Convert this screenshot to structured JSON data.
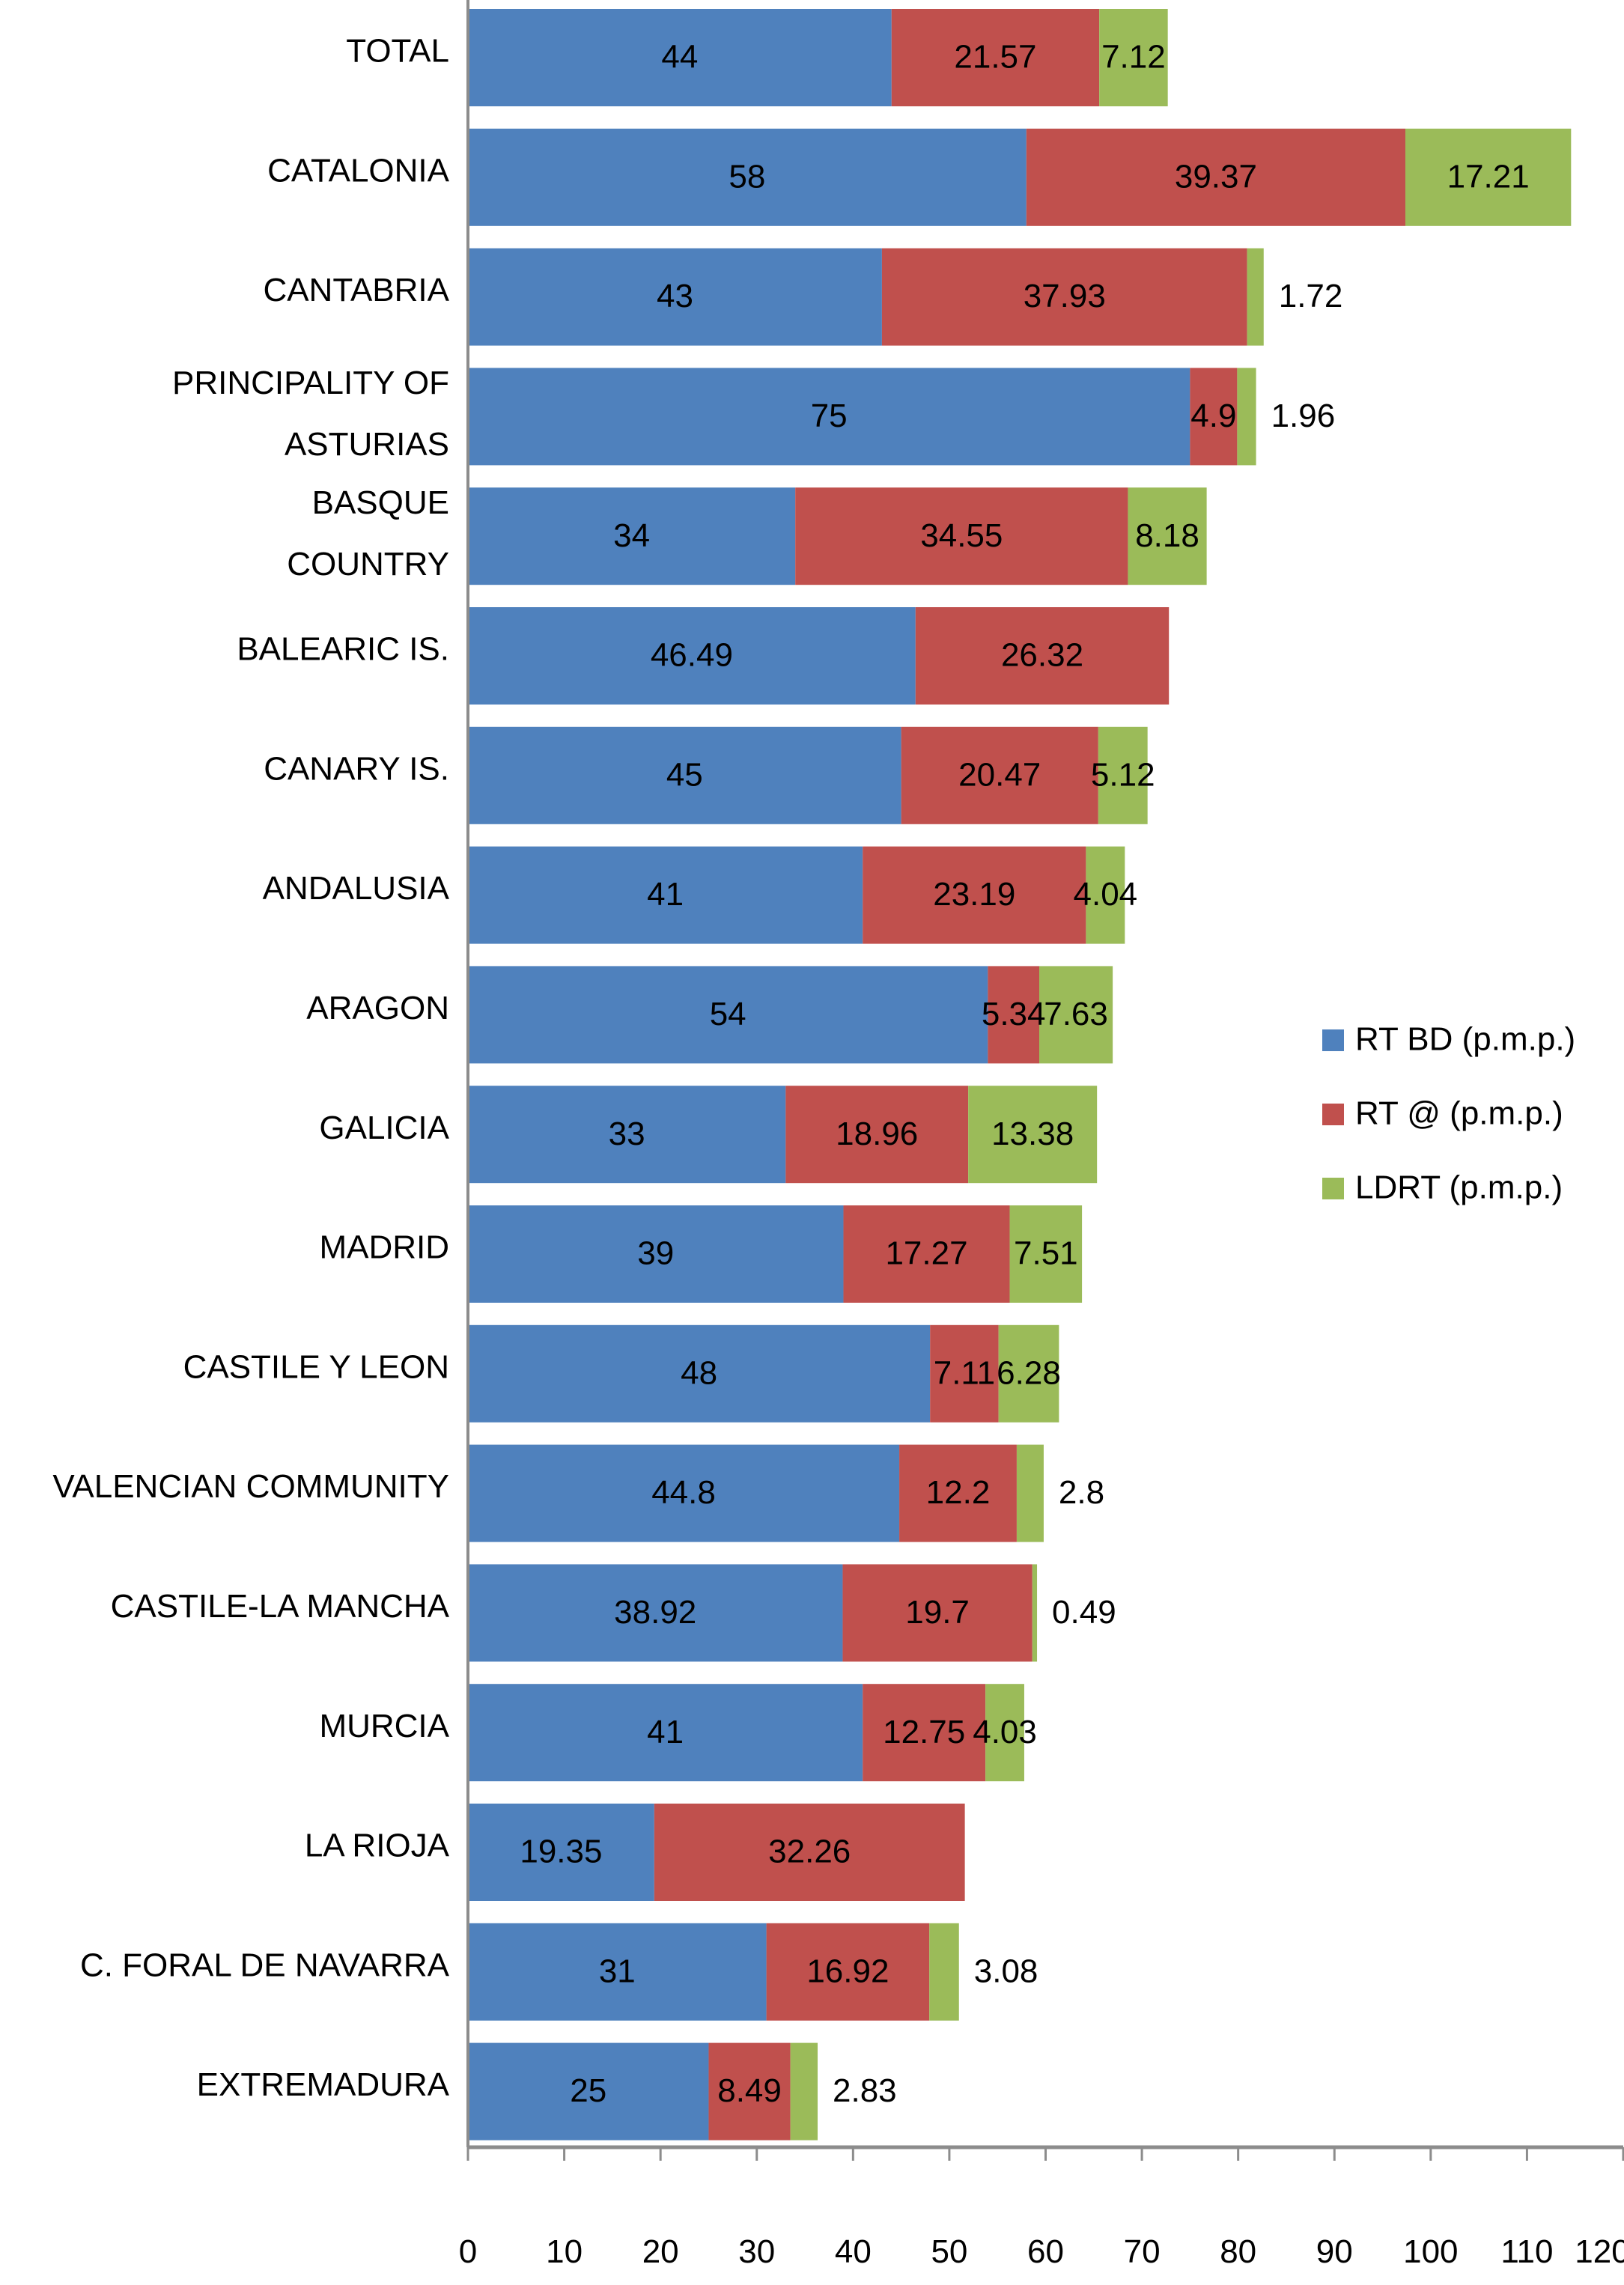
{
  "chart_data": {
    "type": "bar",
    "orientation": "horizontal",
    "stacked": true,
    "title": "",
    "xlabel": "",
    "ylabel": "",
    "xlim": [
      0,
      120
    ],
    "x_ticks": [
      0,
      10,
      20,
      30,
      40,
      50,
      60,
      70,
      80,
      90,
      100,
      110,
      120
    ],
    "grid": false,
    "legend_position": "right",
    "categories": [
      "TOTAL",
      "CATALONIA",
      "CANTABRIA",
      "PRINCIPALITY OF ASTURIAS",
      "BASQUE COUNTRY",
      "BALEARIC IS.",
      "CANARY IS.",
      "ANDALUSIA",
      "ARAGON",
      "GALICIA",
      "MADRID",
      "CASTILE Y LEON",
      "VALENCIAN COMMUNITY",
      "CASTILE-LA MANCHA",
      "MURCIA",
      "LA RIOJA",
      "C. FORAL DE NAVARRA",
      "EXTREMADURA"
    ],
    "category_label_lines": [
      [
        "TOTAL"
      ],
      [
        "CATALONIA"
      ],
      [
        "CANTABRIA"
      ],
      [
        "PRINCIPALITY OF",
        "ASTURIAS"
      ],
      [
        "BASQUE",
        "COUNTRY"
      ],
      [
        "BALEARIC IS."
      ],
      [
        "CANARY IS."
      ],
      [
        "ANDALUSIA"
      ],
      [
        "ARAGON"
      ],
      [
        "GALICIA"
      ],
      [
        "MADRID"
      ],
      [
        "CASTILE Y LEON"
      ],
      [
        "VALENCIAN COMMUNITY"
      ],
      [
        "CASTILE-LA MANCHA"
      ],
      [
        "MURCIA"
      ],
      [
        "LA RIOJA"
      ],
      [
        "C. FORAL DE NAVARRA"
      ],
      [
        "EXTREMADURA"
      ]
    ],
    "series": [
      {
        "name": "RT BD (p.m.p.)",
        "color": "#4f81bd",
        "values": [
          44,
          58,
          43,
          75,
          34,
          46.49,
          45,
          41,
          54,
          33,
          39,
          48,
          44.8,
          38.92,
          41,
          19.35,
          31,
          25
        ]
      },
      {
        "name": "RT @ (p.m.p.)",
        "color": "#c0504d",
        "values": [
          21.57,
          39.37,
          37.93,
          4.9,
          34.55,
          26.32,
          20.47,
          23.19,
          5.34,
          18.96,
          17.27,
          7.11,
          12.2,
          19.7,
          12.75,
          32.26,
          16.92,
          8.49
        ]
      },
      {
        "name": "LDRT (p.m.p.)",
        "color": "#9bbb59",
        "values": [
          7.12,
          17.21,
          1.72,
          1.96,
          8.18,
          null,
          5.12,
          4.04,
          7.63,
          13.38,
          7.51,
          6.28,
          2.8,
          0.49,
          4.03,
          null,
          3.08,
          2.83
        ]
      }
    ]
  }
}
